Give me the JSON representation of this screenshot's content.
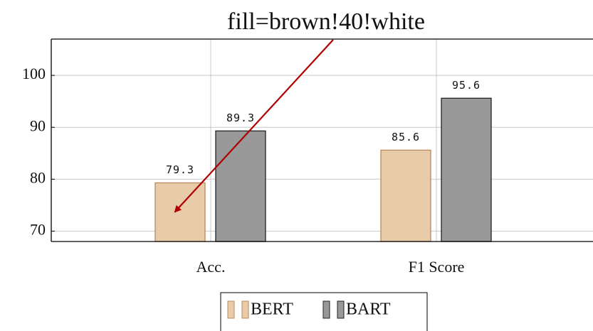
{
  "chart_data": {
    "type": "bar",
    "annotation": "fill=brown!40!white",
    "categories": [
      "Acc.",
      "F1 Score"
    ],
    "series": [
      {
        "name": "BERT",
        "color": "#e8cba8",
        "values": [
          79.3,
          85.6
        ]
      },
      {
        "name": "BART",
        "color": "#999999",
        "values": [
          89.3,
          95.6
        ]
      }
    ],
    "ylim": [
      68,
      107
    ],
    "yticks": [
      70,
      80,
      90,
      100
    ],
    "grid": true
  }
}
